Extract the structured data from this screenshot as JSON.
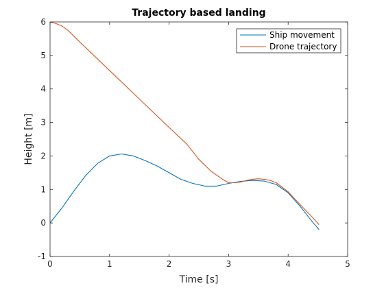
{
  "chart_data": {
    "type": "line",
    "title": "Trajectory based landing",
    "xlabel": "Time [s]",
    "ylabel": "Height [m]",
    "xlim": [
      0,
      5
    ],
    "ylim": [
      -1,
      6
    ],
    "xticks": [
      "0",
      "1",
      "2",
      "3",
      "4",
      "5"
    ],
    "yticks": [
      "-1",
      "0",
      "1",
      "2",
      "3",
      "4",
      "5",
      "6"
    ],
    "grid": false,
    "legend_position": "top-right",
    "series": [
      {
        "name": "Ship movement",
        "color": "#0072BD",
        "x": [
          0,
          0.2,
          0.4,
          0.6,
          0.8,
          1.0,
          1.2,
          1.4,
          1.6,
          1.8,
          2.0,
          2.2,
          2.4,
          2.6,
          2.8,
          3.0,
          3.2,
          3.4,
          3.6,
          3.8,
          4.0,
          4.2,
          4.4,
          4.52
        ],
        "y": [
          0.0,
          0.45,
          0.95,
          1.42,
          1.78,
          2.0,
          2.06,
          2.0,
          1.86,
          1.7,
          1.5,
          1.3,
          1.18,
          1.1,
          1.1,
          1.18,
          1.24,
          1.27,
          1.25,
          1.15,
          0.9,
          0.5,
          0.05,
          -0.2
        ]
      },
      {
        "name": "Drone trajectory",
        "color": "#D95319",
        "x": [
          0,
          0.1,
          0.2,
          0.3,
          0.5,
          1.0,
          1.5,
          2.0,
          2.3,
          2.5,
          2.7,
          2.9,
          3.0,
          3.1,
          3.2,
          3.3,
          3.4,
          3.5,
          3.6,
          3.7,
          3.8,
          4.0,
          4.2,
          4.4,
          4.52
        ],
        "y": [
          6.0,
          5.95,
          5.88,
          5.75,
          5.4,
          4.55,
          3.7,
          2.85,
          2.35,
          1.9,
          1.55,
          1.3,
          1.2,
          1.2,
          1.22,
          1.27,
          1.3,
          1.32,
          1.3,
          1.27,
          1.2,
          0.93,
          0.55,
          0.18,
          -0.05
        ]
      }
    ]
  }
}
